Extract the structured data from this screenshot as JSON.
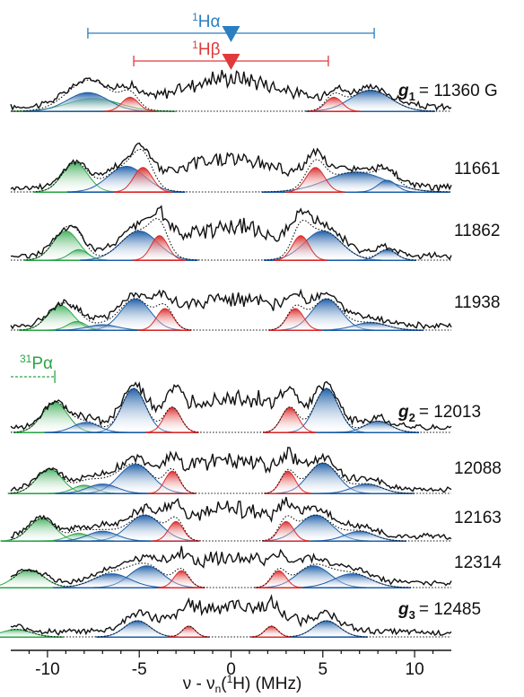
{
  "chart_data": {
    "type": "line",
    "xlabel": "ν - νn(1H) (MHz)",
    "xlim": [
      -12,
      12
    ],
    "xticks": [
      -10,
      -5,
      0,
      5,
      10
    ],
    "xtick_labels": [
      "-10",
      "-5",
      "0",
      "5",
      "10"
    ],
    "markers": {
      "h_alpha": {
        "label_base": "H",
        "label_sup": "1",
        "label_greek": "α",
        "span": [
          -7.8,
          7.8
        ],
        "color": "#2a7fc0"
      },
      "h_beta": {
        "label_base": "H",
        "label_sup": "1",
        "label_greek": "β",
        "span": [
          -5.3,
          5.3
        ],
        "color": "#e03a3a"
      },
      "p_alpha": {
        "label_base": "P",
        "label_sup": "31",
        "label_greek": "α",
        "pos": -9.6,
        "color": "#2aa548"
      }
    },
    "traces": [
      {
        "field_prefix": "g",
        "field_sub": "1",
        "field_value": "= 11360 G",
        "green": [
          [
            -7.5,
            1.4,
            0.55
          ]
        ],
        "blue": [
          [
            -7.8,
            1.1,
            0.8
          ],
          [
            7.6,
            1.1,
            0.9
          ]
        ],
        "red": [
          [
            -5.5,
            0.45,
            0.6
          ],
          [
            5.6,
            0.45,
            0.6
          ]
        ]
      },
      {
        "field_prefix": "",
        "field_sub": "",
        "field_value": "11661",
        "green": [
          [
            -8.5,
            0.7,
            1.25
          ]
        ],
        "blue": [
          [
            -5.7,
            1.0,
            1.1
          ],
          [
            6.8,
            1.6,
            0.85
          ],
          [
            8.5,
            0.5,
            0.5
          ]
        ],
        "red": [
          [
            -4.8,
            0.5,
            1.05
          ],
          [
            4.6,
            0.5,
            1.05
          ]
        ]
      },
      {
        "field_prefix": "",
        "field_sub": "",
        "field_value": "11862",
        "green": [
          [
            -9.0,
            0.7,
            1.25
          ],
          [
            -8.3,
            0.5,
            0.45
          ]
        ],
        "blue": [
          [
            -5.0,
            1.0,
            1.25
          ],
          [
            5.0,
            1.0,
            1.25
          ],
          [
            8.5,
            0.5,
            0.45
          ]
        ],
        "red": [
          [
            -3.9,
            0.45,
            1.05
          ],
          [
            3.8,
            0.45,
            1.05
          ]
        ]
      },
      {
        "field_prefix": "",
        "field_sub": "",
        "field_value": "11938",
        "green": [
          [
            -9.3,
            0.7,
            1.15
          ],
          [
            -8.4,
            0.5,
            0.4
          ]
        ],
        "blue": [
          [
            -5.2,
            0.8,
            1.45
          ],
          [
            5.2,
            0.8,
            1.45
          ],
          [
            -7.0,
            0.8,
            0.25
          ],
          [
            7.6,
            0.9,
            0.35
          ]
        ],
        "red": [
          [
            -3.6,
            0.45,
            1.0
          ],
          [
            3.5,
            0.45,
            1.0
          ]
        ]
      },
      {
        "field_prefix": "g",
        "field_sub": "2",
        "field_value": "= 12013",
        "green": [
          [
            -9.6,
            0.7,
            1.2
          ]
        ],
        "blue": [
          [
            -5.3,
            0.65,
            1.75
          ],
          [
            5.2,
            0.65,
            1.75
          ],
          [
            -7.9,
            0.7,
            0.4
          ],
          [
            8.0,
            0.7,
            0.45
          ]
        ],
        "red": [
          [
            -3.2,
            0.45,
            1.0
          ],
          [
            3.2,
            0.45,
            1.0
          ]
        ]
      },
      {
        "field_prefix": "",
        "field_sub": "",
        "field_value": "12088",
        "green": [
          [
            -9.9,
            0.7,
            1.05
          ],
          [
            -8.0,
            0.6,
            0.35
          ]
        ],
        "blue": [
          [
            -5.2,
            0.9,
            1.25
          ],
          [
            5.0,
            0.8,
            1.3
          ],
          [
            -7.0,
            0.8,
            0.4
          ],
          [
            7.4,
            0.8,
            0.4
          ]
        ],
        "red": [
          [
            -3.2,
            0.4,
            0.95
          ],
          [
            3.1,
            0.4,
            0.95
          ]
        ]
      },
      {
        "field_prefix": "",
        "field_sub": "",
        "field_value": "12163",
        "green": [
          [
            -10.3,
            0.7,
            1.05
          ],
          [
            -8.3,
            0.6,
            0.35
          ]
        ],
        "blue": [
          [
            -4.7,
            0.9,
            1.2
          ],
          [
            4.6,
            0.9,
            1.2
          ],
          [
            -7.0,
            0.8,
            0.45
          ],
          [
            7.0,
            0.8,
            0.45
          ]
        ],
        "red": [
          [
            -3.0,
            0.4,
            0.9
          ],
          [
            3.0,
            0.4,
            0.9
          ]
        ]
      },
      {
        "field_prefix": "",
        "field_sub": "",
        "field_value": "12314",
        "green": [
          [
            -11.0,
            0.8,
            0.9
          ]
        ],
        "blue": [
          [
            -4.6,
            0.9,
            1.1
          ],
          [
            4.5,
            0.9,
            1.1
          ],
          [
            -6.5,
            1.0,
            0.7
          ],
          [
            6.6,
            1.0,
            0.7
          ]
        ],
        "red": [
          [
            -2.7,
            0.4,
            0.85
          ],
          [
            2.6,
            0.4,
            0.85
          ]
        ]
      },
      {
        "field_prefix": "g",
        "field_sub": "3",
        "field_value": "= 12485",
        "green": [
          [
            -11.7,
            0.8,
            0.35
          ]
        ],
        "blue": [
          [
            -5.1,
            0.7,
            0.75
          ],
          [
            5.2,
            0.7,
            0.75
          ]
        ],
        "red": [
          [
            -2.3,
            0.35,
            0.5
          ],
          [
            2.2,
            0.35,
            0.5
          ]
        ]
      }
    ]
  },
  "colors": {
    "blue": "#1f5fa8",
    "red": "#d92c2c",
    "green": "#2aa548",
    "line": "#111111"
  }
}
